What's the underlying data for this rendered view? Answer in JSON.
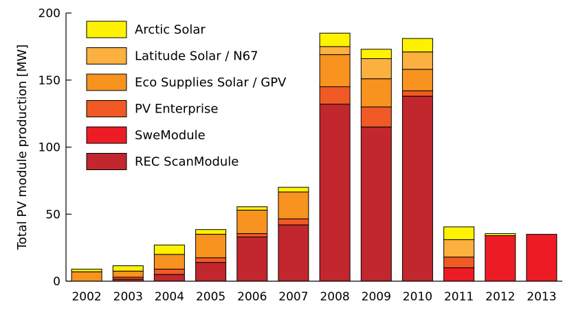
{
  "chart_data": {
    "type": "bar",
    "stacked": true,
    "title": "",
    "xlabel": "",
    "ylabel": "Total PV module production [MW]",
    "ylim": [
      0,
      200
    ],
    "yticks": [
      0,
      50,
      100,
      150,
      200
    ],
    "grid": false,
    "legend_position": "top-left",
    "categories": [
      "2002",
      "2003",
      "2004",
      "2005",
      "2006",
      "2007",
      "2008",
      "2009",
      "2010",
      "2011",
      "2012",
      "2013"
    ],
    "series": [
      {
        "name": "REC ScanModule",
        "color": "#c1272d",
        "values": [
          0,
          1.5,
          5,
          14,
          33,
          42,
          132,
          115,
          138,
          0,
          0,
          0
        ]
      },
      {
        "name": "SweModule",
        "color": "#ed1c24",
        "values": [
          0,
          0,
          0,
          0,
          0,
          0,
          0,
          0,
          0,
          10,
          34,
          35
        ]
      },
      {
        "name": "PV Enterprise",
        "color": "#f15a24",
        "values": [
          0,
          1.5,
          4,
          3.5,
          2.5,
          4.5,
          13,
          15,
          4,
          8,
          0,
          0
        ]
      },
      {
        "name": "Eco Supplies Solar / GPV",
        "color": "#f7931e",
        "values": [
          7,
          4.5,
          11,
          17.5,
          17.5,
          20,
          24,
          21,
          16,
          0,
          0,
          0
        ]
      },
      {
        "name": "Latitude Solar / N67",
        "color": "#fbb040",
        "values": [
          0,
          0,
          0,
          0,
          0,
          0,
          6,
          15,
          13,
          13,
          0,
          0
        ]
      },
      {
        "name": "Arctic Solar",
        "color": "#fff200",
        "values": [
          2,
          4,
          7,
          3.5,
          2.5,
          3.5,
          10,
          7,
          10,
          9.5,
          1.5,
          0
        ]
      }
    ]
  }
}
